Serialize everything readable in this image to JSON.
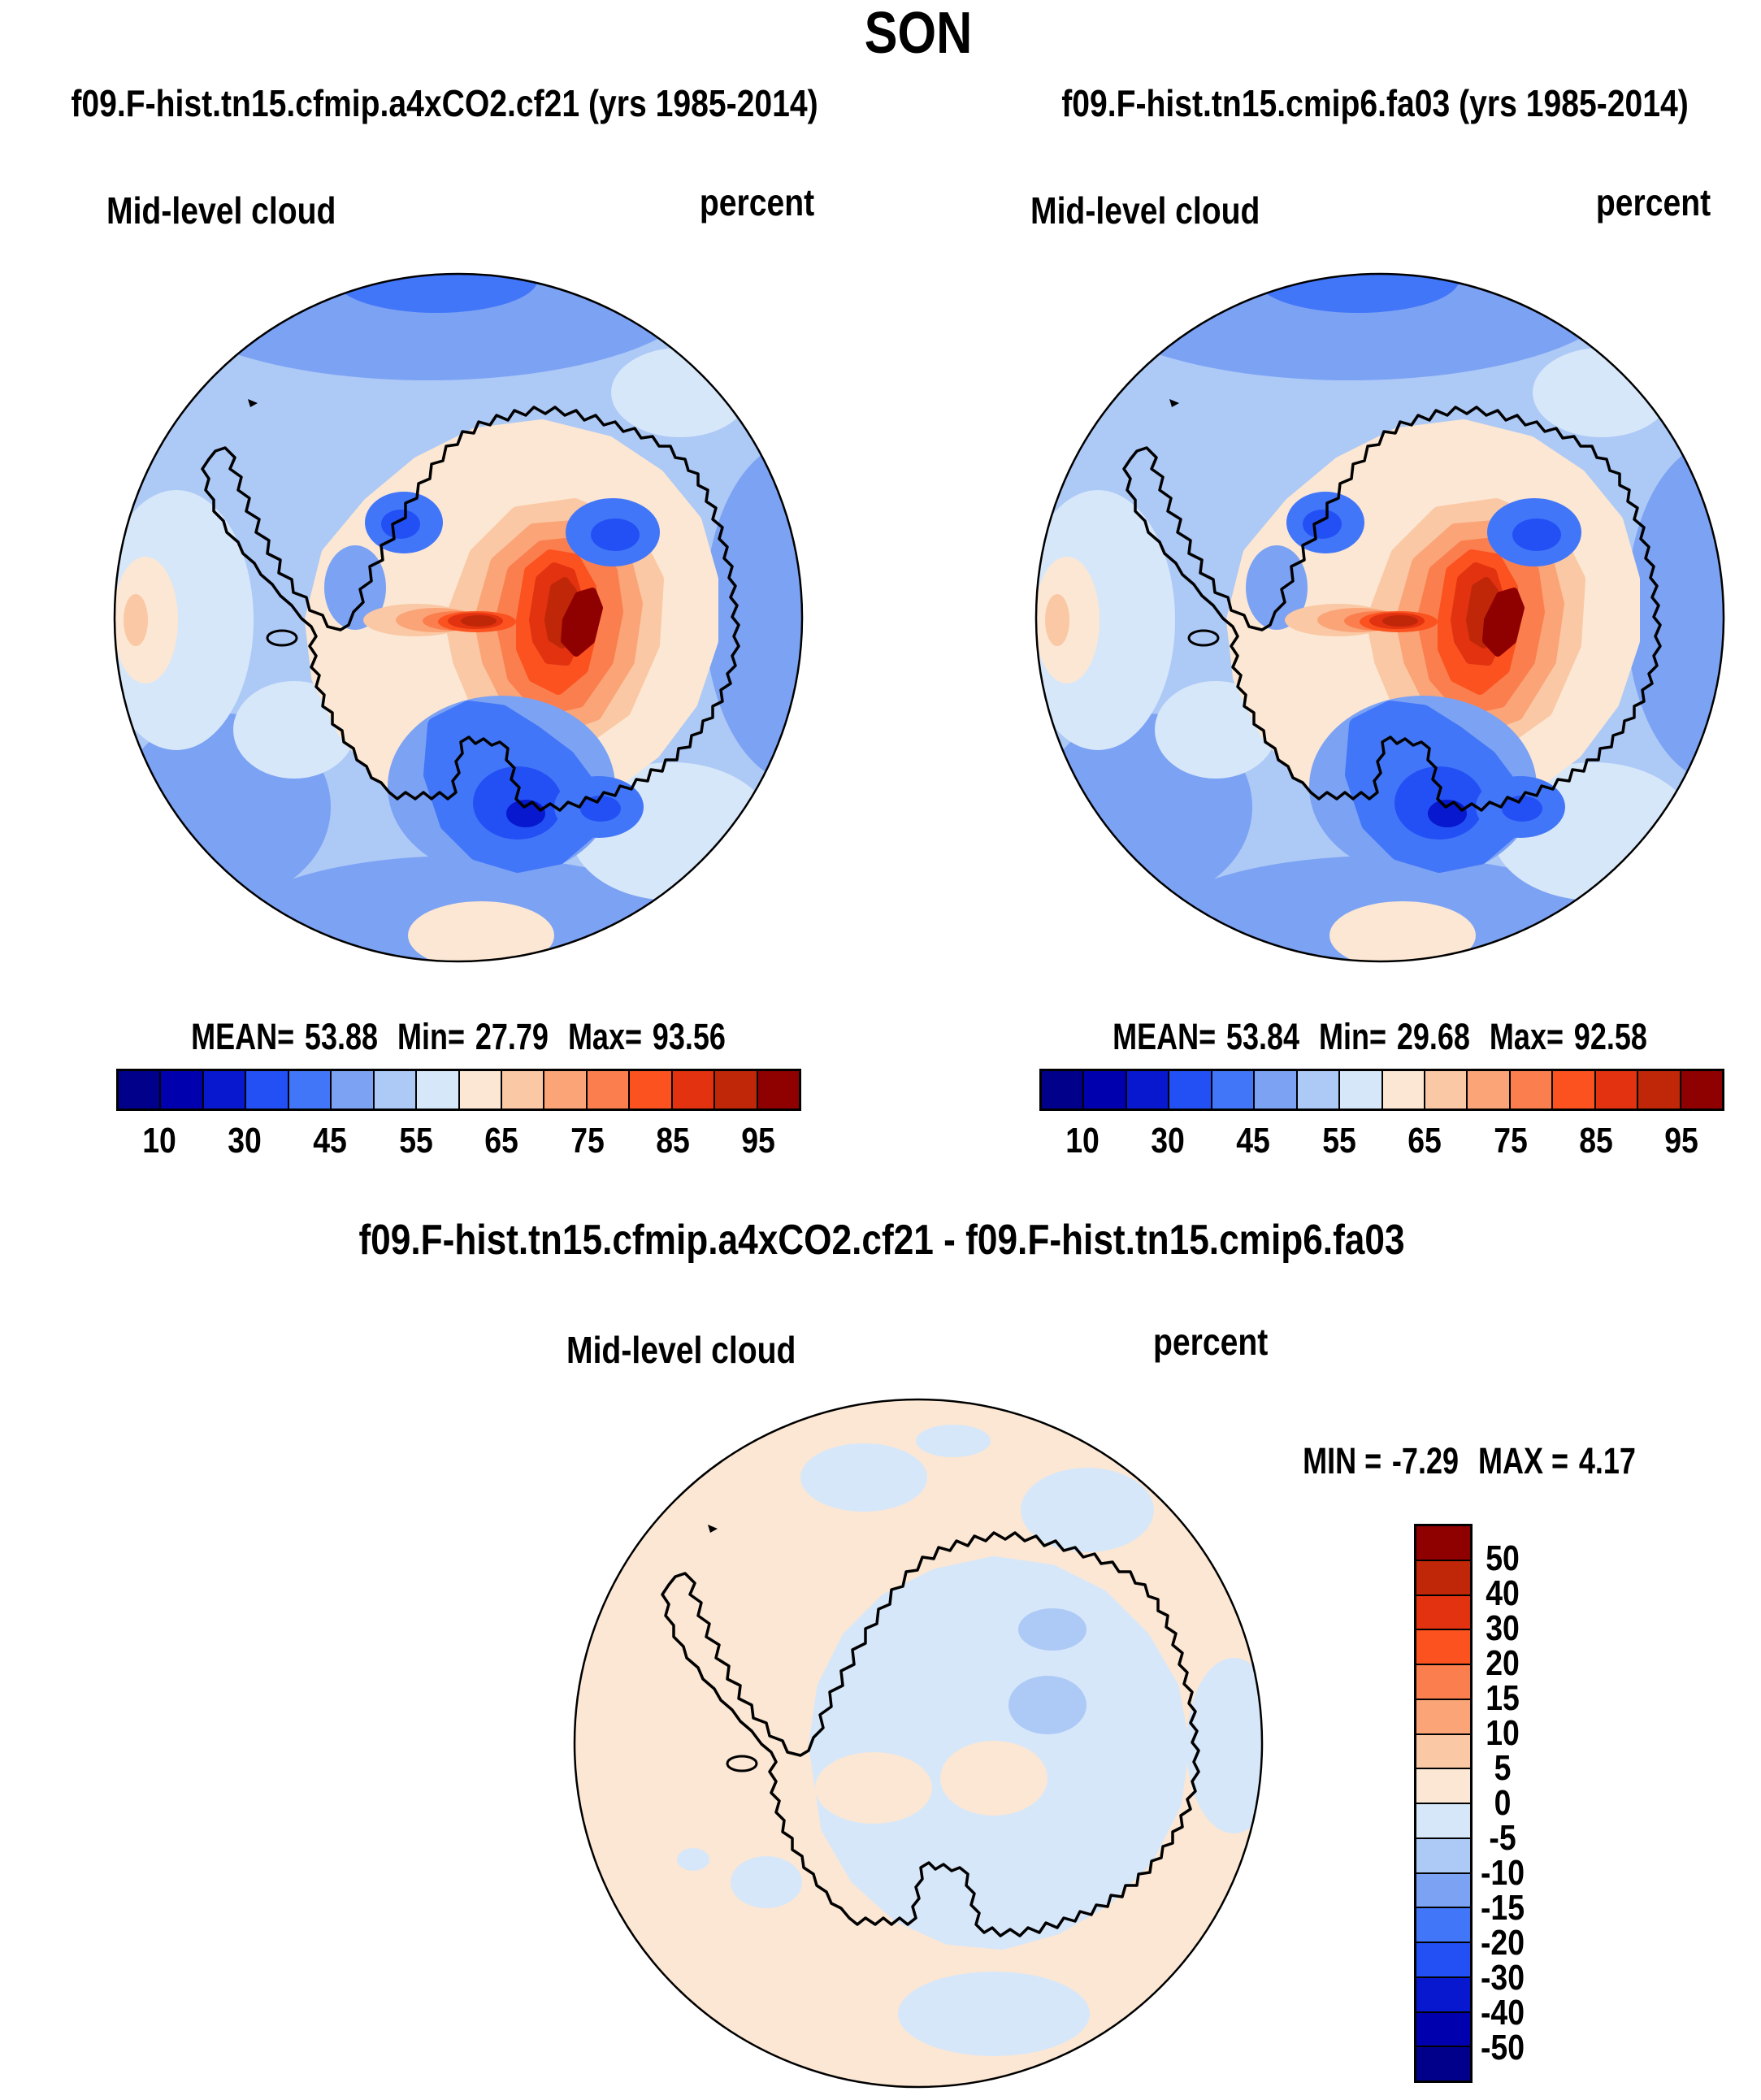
{
  "title": "SON",
  "panels": {
    "left": {
      "subtitle": "f09.F-hist.tn15.cfmip.a4xCO2.cf21 (yrs 1985-2014)",
      "field_label": "Mid-level cloud",
      "units_label": "percent",
      "stats": {
        "mean_label": "MEAN=",
        "mean": "53.88",
        "min_label": "Min=",
        "min": "27.79",
        "max_label": "Max=",
        "max": "93.56"
      }
    },
    "right": {
      "subtitle": "f09.F-hist.tn15.cmip6.fa03 (yrs 1985-2014)",
      "field_label": "Mid-level cloud",
      "units_label": "percent",
      "stats": {
        "mean_label": "MEAN=",
        "mean": "53.84",
        "min_label": "Min=",
        "min": "29.68",
        "max_label": "Max=",
        "max": "92.58"
      }
    },
    "diff": {
      "subtitle": "f09.F-hist.tn15.cfmip.a4xCO2.cf21 - f09.F-hist.tn15.cmip6.fa03",
      "field_label": "Mid-level cloud",
      "units_label": "percent",
      "stats": {
        "min_label": "MIN =",
        "min": "-7.29",
        "max_label": "MAX =",
        "max": "4.17"
      }
    }
  },
  "palette": [
    "#00008B",
    "#0000AE",
    "#0718CE",
    "#2350F5",
    "#4276F8",
    "#7CA2F4",
    "#ADC9F6",
    "#D7E7FA",
    "#FBE7D3",
    "#FAC8A4",
    "#FAA478",
    "#FB7F4E",
    "#FB5220",
    "#E23210",
    "#C02708",
    "#8F0000"
  ],
  "colorbar": {
    "segments": 16,
    "tick_labels": [
      "10",
      "30",
      "45",
      "55",
      "65",
      "75",
      "85",
      "95"
    ],
    "tick_positions": [
      1,
      3,
      5,
      7,
      9,
      11,
      13,
      15
    ]
  },
  "diff_colorbar": {
    "segments": 16,
    "tick_labels": [
      "50",
      "40",
      "30",
      "20",
      "15",
      "10",
      "5",
      "0",
      "-5",
      "-10",
      "-15",
      "-20",
      "-30",
      "-40",
      "-50"
    ]
  },
  "chart_data": {
    "type": "heatmap",
    "title": "SON",
    "variable": "Mid-level cloud",
    "units": "percent",
    "projection": "antarctic-polar-stereographic",
    "panels": [
      {
        "id": "left",
        "case": "f09.F-hist.tn15.cfmip.a4xCO2.cf21",
        "years": "1985-2014",
        "mean": 53.88,
        "min": 27.79,
        "max": 93.56,
        "legend_position": "below"
      },
      {
        "id": "right",
        "case": "f09.F-hist.tn15.cmip6.fa03",
        "years": "1985-2014",
        "mean": 53.84,
        "min": 29.68,
        "max": 92.58,
        "legend_position": "below"
      },
      {
        "id": "diff",
        "case": "f09.F-hist.tn15.cfmip.a4xCO2.cf21 - f09.F-hist.tn15.cmip6.fa03",
        "min": -7.29,
        "max": 4.17,
        "legend_position": "right-vertical"
      }
    ],
    "colorbar_levels": [
      10,
      20,
      30,
      40,
      45,
      50,
      55,
      60,
      65,
      70,
      75,
      80,
      85,
      90,
      95
    ],
    "diff_colorbar_levels": [
      50,
      40,
      30,
      20,
      15,
      10,
      5,
      0,
      -5,
      -10,
      -15,
      -20,
      -30,
      -40,
      -50
    ],
    "color_meaning": "blue = low cloud fraction / negative difference, red = high cloud fraction / positive difference"
  }
}
